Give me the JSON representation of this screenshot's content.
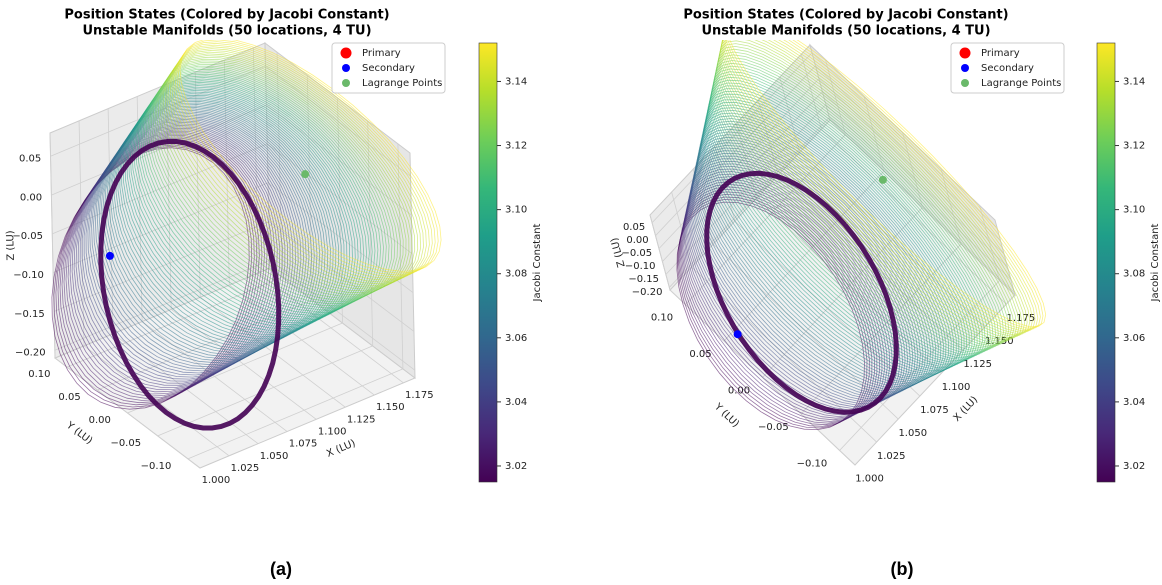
{
  "chart_data": [
    {
      "type": "scatter3d",
      "title": "Position States (Colored by Jacobi Constant)",
      "subtitle": "Unstable Manifolds (50 locations, 4 TU)",
      "xlabel": "X (LU)",
      "ylabel": "Y (LU)",
      "zlabel": "Z (LU)",
      "xlim": [
        1.0,
        1.185
      ],
      "ylim": [
        -0.12,
        0.12
      ],
      "zlim": [
        -0.21,
        0.08
      ],
      "xticks": [
        {
          "value": 1.0,
          "label": "1.000"
        },
        1.025,
        {
          "value": 1.05,
          "label": "1.050"
        },
        1.075,
        {
          "value": 1.1,
          "label": "1.100"
        },
        1.125,
        {
          "value": 1.15,
          "label": "1.150"
        },
        1.175
      ],
      "yticks": [
        {
          "value": -0.1,
          "label": "−0.10"
        },
        {
          "value": -0.05,
          "label": "−0.05"
        },
        {
          "value": 0,
          "label": "0.00"
        },
        0.05,
        {
          "value": 0.1,
          "label": "0.10"
        }
      ],
      "zticks": [
        {
          "value": -0.2,
          "label": "−0.20"
        },
        {
          "value": -0.15,
          "label": "−0.15"
        },
        {
          "value": -0.1,
          "label": "−0.10"
        },
        {
          "value": -0.05,
          "label": "−0.05"
        },
        {
          "value": 0,
          "label": "0.00"
        },
        0.05
      ],
      "grid": true,
      "series": [
        {
          "name": "Primary",
          "color": "#ff0000"
        },
        {
          "name": "Secondary",
          "color": "#0000ff",
          "x": [
            0.988
          ],
          "y": [
            0
          ],
          "z": [
            0
          ]
        },
        {
          "name": "Lagrange Points",
          "color": "#6ab96a",
          "x": [
            1.156
          ],
          "y": [
            0
          ],
          "z": [
            0
          ]
        }
      ],
      "legend": "upper right",
      "colorbar": {
        "label": "Jacobi Constant",
        "lim": [
          3.015,
          3.152
        ],
        "ticks": [
          3.02,
          3.04,
          3.06,
          3.08,
          {
            "value": 3.1,
            "label": "3.10"
          },
          3.12,
          3.14
        ]
      },
      "caption": "(a)"
    },
    {
      "type": "scatter3d",
      "title": "Position States (Colored by Jacobi Constant)",
      "subtitle": "Unstable Manifolds (50 locations, 4 TU)",
      "xlabel": "X (LU)",
      "ylabel": "Y (LU)",
      "zlabel": "Z (LU)",
      "xlim": [
        1.0,
        1.185
      ],
      "ylim": [
        -0.12,
        0.12
      ],
      "zlim": [
        -0.21,
        0.08
      ],
      "xticks": [
        {
          "value": 1.0,
          "label": "1.000"
        },
        1.025,
        {
          "value": 1.05,
          "label": "1.050"
        },
        1.075,
        {
          "value": 1.1,
          "label": "1.100"
        },
        1.125,
        {
          "value": 1.15,
          "label": "1.150"
        },
        1.175
      ],
      "yticks": [
        {
          "value": -0.1,
          "label": "−0.10"
        },
        {
          "value": -0.05,
          "label": "−0.05"
        },
        {
          "value": 0,
          "label": "0.00"
        },
        0.05,
        {
          "value": 0.1,
          "label": "0.10"
        }
      ],
      "zticks": [
        {
          "value": -0.2,
          "label": "−0.20"
        },
        {
          "value": -0.15,
          "label": "−0.15"
        },
        {
          "value": -0.1,
          "label": "−0.10"
        },
        {
          "value": -0.05,
          "label": "−0.05"
        },
        {
          "value": 0,
          "label": "0.00"
        },
        0.05
      ],
      "grid": true,
      "series": [
        {
          "name": "Primary",
          "color": "#ff0000"
        },
        {
          "name": "Secondary",
          "color": "#0000ff",
          "x": [
            0.988
          ],
          "y": [
            0
          ],
          "z": [
            0
          ]
        },
        {
          "name": "Lagrange Points",
          "color": "#6ab96a",
          "x": [
            1.156
          ],
          "y": [
            0
          ],
          "z": [
            0
          ]
        }
      ],
      "legend": "upper right",
      "colorbar": {
        "label": "Jacobi Constant",
        "lim": [
          3.015,
          3.152
        ],
        "ticks": [
          3.02,
          3.04,
          3.06,
          3.08,
          {
            "value": 3.1,
            "label": "3.10"
          },
          3.12,
          3.14
        ]
      },
      "caption": "(b)"
    }
  ]
}
